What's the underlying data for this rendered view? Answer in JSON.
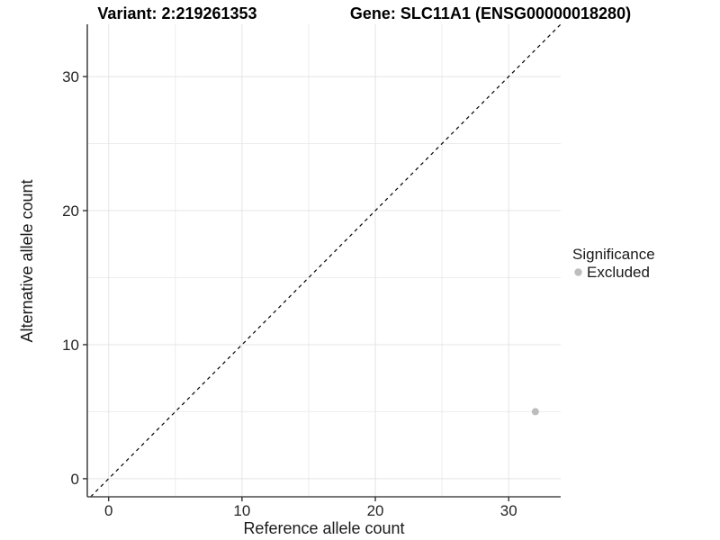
{
  "chart_data": {
    "type": "scatter",
    "title_left": "Variant: 2:219261353",
    "title_right": "Gene: SLC11A1 (ENSG00000018280)",
    "xlabel": "Reference allele count",
    "ylabel": "Alternative allele count",
    "xlim": [
      -1.6,
      33.9
    ],
    "ylim": [
      -1.35,
      33.9
    ],
    "x_ticks": [
      0,
      10,
      20,
      30
    ],
    "y_ticks": [
      0,
      10,
      20,
      30
    ],
    "x_minor_gridlines": [
      5,
      15,
      25
    ],
    "y_minor_gridlines": [
      5,
      15,
      25
    ],
    "grid": true,
    "abline": {
      "slope": 1,
      "intercept": 0,
      "style": "dashed",
      "color": "#000000"
    },
    "points": [
      {
        "x": 32,
        "y": 5,
        "significance": "Excluded",
        "color": "#bdbdbd",
        "radius": 4
      }
    ],
    "legend": {
      "position": "right",
      "title": "Significance",
      "items": [
        {
          "label": "Excluded",
          "color": "#bdbdbd"
        }
      ]
    },
    "colors": {
      "background": "#ffffff",
      "grid_major": "#e4e4e4",
      "grid_minor": "#ededed",
      "axis_line": "#4a4a4a",
      "tick_mark": "#333333",
      "text": "#1a1a1a"
    }
  }
}
